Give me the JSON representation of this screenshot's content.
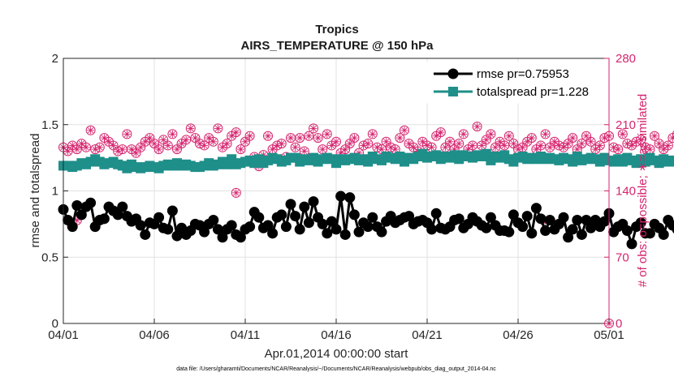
{
  "chart_data": {
    "type": "line",
    "title": "Tropics",
    "subtitle": "AIRS_TEMPERATURE @ 150 hPa",
    "xlabel": "Apr.01,2014 00:00:00 start",
    "ylabel": "rmse and totalspread",
    "ylabel_right": "# of obs: o=possible; ∗=assimilated",
    "footnote": "data file: /Users/gharamti/Documents/NCAR/Reanalysis/~/Documents/NCAR/Reanalysis/webpub/obs_diag_output_2014-04.nc",
    "xlim": [
      0,
      30
    ],
    "ylim": [
      0,
      2
    ],
    "ylim_right": [
      0,
      280
    ],
    "x_ticks": [
      0,
      5,
      10,
      15,
      20,
      25,
      30
    ],
    "x_tick_labels": [
      "04/01",
      "04/06",
      "04/11",
      "04/16",
      "04/21",
      "04/26",
      "05/01"
    ],
    "y_ticks": [
      0,
      0.5,
      1,
      1.5,
      2
    ],
    "y_tick_labels": [
      "0",
      "0.5",
      "1",
      "1.5",
      "2"
    ],
    "y_ticks_right": [
      0,
      70,
      140,
      210,
      280
    ],
    "y_tick_labels_right": [
      "0",
      "70",
      "140",
      "210",
      "280"
    ],
    "grid": true,
    "legend_position": "top-right",
    "time_step_days": 0.25,
    "colors": {
      "rmse": "#000000",
      "spread": "#1f8f8a",
      "obs": "#d6246e",
      "axis": "#262626"
    },
    "series": [
      {
        "name": "rmse pr=0.75953",
        "axis": "left",
        "marker": "circle",
        "values": [
          0.86,
          0.78,
          0.73,
          0.89,
          0.82,
          0.88,
          0.91,
          0.73,
          0.78,
          0.79,
          0.88,
          0.85,
          0.82,
          0.88,
          0.81,
          0.77,
          0.79,
          0.74,
          0.67,
          0.76,
          0.75,
          0.8,
          0.72,
          0.71,
          0.85,
          0.66,
          0.72,
          0.67,
          0.7,
          0.75,
          0.74,
          0.69,
          0.75,
          0.78,
          0.71,
          0.65,
          0.71,
          0.74,
          0.67,
          0.65,
          0.71,
          0.73,
          0.84,
          0.8,
          0.72,
          0.74,
          0.68,
          0.8,
          0.82,
          0.73,
          0.9,
          0.81,
          0.71,
          0.88,
          0.76,
          0.92,
          0.8,
          0.75,
          0.68,
          0.77,
          0.71,
          0.96,
          0.67,
          0.95,
          0.82,
          0.69,
          0.76,
          0.73,
          0.8,
          0.73,
          0.69,
          0.77,
          0.81,
          0.76,
          0.78,
          0.8,
          0.81,
          0.75,
          0.77,
          0.78,
          0.76,
          0.71,
          0.83,
          0.72,
          0.71,
          0.73,
          0.78,
          0.79,
          0.72,
          0.75,
          0.8,
          0.77,
          0.74,
          0.72,
          0.8,
          0.74,
          0.7,
          0.7,
          0.69,
          0.82,
          0.76,
          0.73,
          0.81,
          0.68,
          0.87,
          0.79,
          0.7,
          0.78,
          0.71,
          0.75,
          0.8,
          0.65,
          0.71,
          0.78,
          0.67,
          0.78,
          0.72,
          0.78,
          0.73,
          0.77,
          0.83,
          0.69,
          0.73,
          0.75,
          0.7,
          0.6,
          0.73,
          0.76,
          0.68,
          0.68,
          0.75,
          0.72,
          0.67,
          0.78,
          0.74,
          0.71,
          0.69,
          0.76,
          0.72,
          0.67,
          0.73,
          0.72,
          0.74,
          0.71,
          0.76,
          0.73,
          0.81,
          0.7,
          0.75,
          0.72,
          0.73
        ],
        "comment": ""
      },
      {
        "name": "totalspread pr=1.228",
        "axis": "left",
        "marker": "square",
        "values": [
          1.19,
          1.19,
          1.18,
          1.19,
          1.21,
          1.2,
          1.22,
          1.24,
          1.22,
          1.2,
          1.21,
          1.22,
          1.2,
          1.19,
          1.17,
          1.2,
          1.18,
          1.17,
          1.18,
          1.19,
          1.18,
          1.17,
          1.19,
          1.2,
          1.19,
          1.21,
          1.19,
          1.2,
          1.19,
          1.18,
          1.18,
          1.19,
          1.21,
          1.19,
          1.2,
          1.22,
          1.2,
          1.24,
          1.2,
          1.21,
          1.22,
          1.23,
          1.21,
          1.24,
          1.21,
          1.23,
          1.25,
          1.24,
          1.22,
          1.23,
          1.25,
          1.25,
          1.22,
          1.24,
          1.23,
          1.25,
          1.22,
          1.24,
          1.25,
          1.24,
          1.21,
          1.24,
          1.23,
          1.24,
          1.25,
          1.23,
          1.24,
          1.22,
          1.26,
          1.24,
          1.23,
          1.26,
          1.25,
          1.24,
          1.26,
          1.22,
          1.25,
          1.24,
          1.26,
          1.28,
          1.25,
          1.26,
          1.27,
          1.24,
          1.26,
          1.25,
          1.27,
          1.24,
          1.27,
          1.26,
          1.25,
          1.27,
          1.26,
          1.28,
          1.23,
          1.26,
          1.25,
          1.27,
          1.24,
          1.22,
          1.25,
          1.26,
          1.24,
          1.25,
          1.24,
          1.26,
          1.24,
          1.25,
          1.24,
          1.23,
          1.25,
          1.24,
          1.22,
          1.26,
          1.23,
          1.24,
          1.25,
          1.24,
          1.22,
          1.25,
          1.23,
          1.22,
          1.24,
          1.22,
          1.25,
          1.23,
          1.21,
          1.24,
          1.22,
          1.25,
          1.23,
          1.21,
          1.24,
          1.22,
          1.23,
          1.22,
          1.25,
          1.21,
          1.23,
          1.2,
          1.22,
          1.21,
          1.23,
          1.21,
          1.22,
          1.19,
          1.23,
          1.21,
          1.2,
          1.18
        ]
      },
      {
        "name": "# of obs possible",
        "axis": "right",
        "marker": "circle-open",
        "values": [
          186,
          182,
          188,
          184,
          190,
          186,
          204,
          184,
          186,
          196,
          192,
          188,
          182,
          184,
          200,
          184,
          180,
          186,
          192,
          196,
          190,
          184,
          194,
          188,
          200,
          184,
          190,
          194,
          206,
          196,
          190,
          188,
          196,
          192,
          206,
          186,
          190,
          198,
          202,
          184,
          192,
          198,
          176,
          166,
          178,
          198,
          184,
          188,
          190,
          176,
          196,
          186,
          196,
          182,
          198,
          206,
          196,
          184,
          200,
          188,
          192,
          180,
          184,
          190,
          196,
          180,
          188,
          190,
          200,
          186,
          184,
          192,
          186,
          184,
          196,
          204,
          190,
          186,
          182,
          192,
          188,
          186,
          198,
          202,
          186,
          192,
          184,
          190,
          200,
          184,
          188,
          208,
          188,
          194,
          200,
          186,
          192,
          188,
          198,
          190,
          184,
          186,
          192,
          196,
          184,
          188,
          200,
          186,
          192,
          188,
          186,
          190,
          196,
          184,
          190,
          198,
          192,
          184,
          188,
          196,
          198,
          186,
          184,
          200,
          190,
          188,
          192,
          194,
          186,
          184,
          198,
          190,
          184,
          188,
          196,
          200,
          186,
          184,
          196,
          188,
          192,
          186,
          200,
          182,
          188,
          190,
          184
        ],
        "comment": ""
      },
      {
        "name": "# of obs assimilated",
        "axis": "right",
        "marker": "asterisk",
        "values": [
          186,
          182,
          188,
          184,
          190,
          186,
          204,
          184,
          186,
          196,
          192,
          188,
          182,
          184,
          200,
          184,
          180,
          186,
          192,
          196,
          190,
          184,
          194,
          188,
          200,
          184,
          190,
          194,
          206,
          196,
          190,
          188,
          196,
          192,
          206,
          186,
          190,
          198,
          202,
          184,
          192,
          198,
          176,
          166,
          178,
          198,
          184,
          188,
          190,
          176,
          196,
          186,
          196,
          182,
          198,
          206,
          196,
          184,
          200,
          188,
          192,
          180,
          184,
          190,
          196,
          180,
          188,
          190,
          200,
          186,
          184,
          192,
          186,
          184,
          196,
          204,
          190,
          186,
          182,
          192,
          188,
          186,
          198,
          202,
          186,
          192,
          184,
          190,
          200,
          184,
          188,
          208,
          188,
          194,
          200,
          186,
          192,
          188,
          198,
          190,
          184,
          186,
          192,
          196,
          184,
          188,
          200,
          186,
          192,
          188,
          186,
          190,
          196,
          184,
          190,
          198,
          192,
          184,
          188,
          196,
          198,
          186,
          184,
          200,
          190,
          188,
          192,
          194,
          186,
          184,
          198,
          190,
          184,
          188,
          196,
          200,
          186,
          184,
          196,
          188,
          192,
          186,
          200,
          182,
          188,
          190,
          184
        ]
      }
    ],
    "extra_obs_points": [
      {
        "x": 0.75,
        "y": 109
      },
      {
        "x": 9.5,
        "y": 138
      },
      {
        "x": 26.5,
        "y": 107
      },
      {
        "x": 30,
        "y": 0
      }
    ]
  }
}
